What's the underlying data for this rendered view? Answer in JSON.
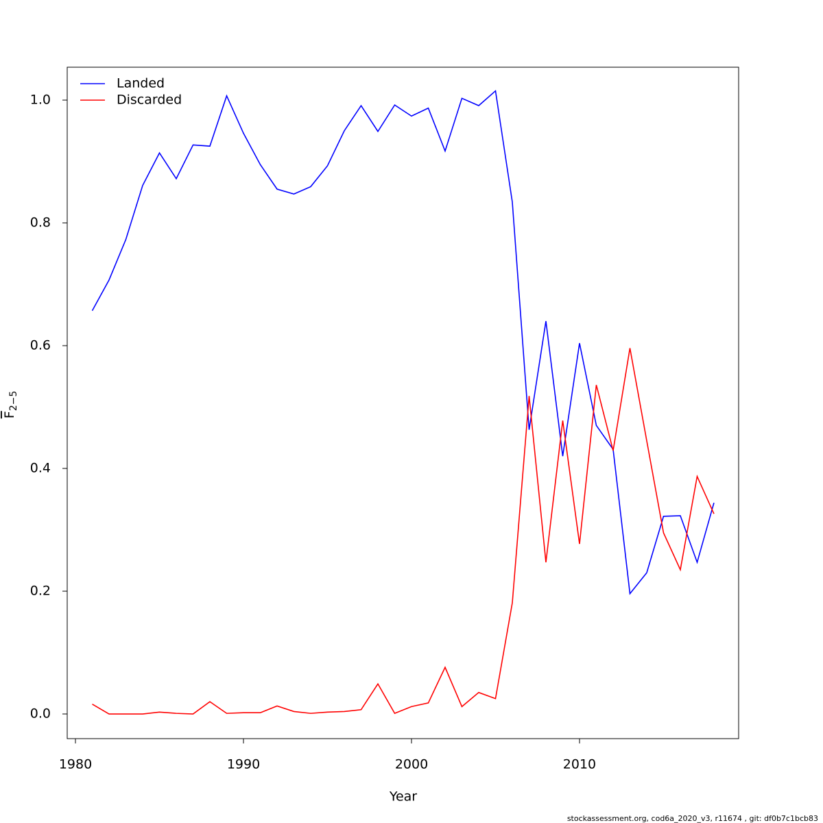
{
  "chart_data": {
    "type": "line",
    "xlabel": "Year",
    "ylabel": {
      "main": "F",
      "subscript": "2−5"
    },
    "footnote": "stockassessment.org, cod6a_2020_v3, r11674 , git: df0b7c1bcb83",
    "x": [
      1981,
      1982,
      1983,
      1984,
      1985,
      1986,
      1987,
      1988,
      1989,
      1990,
      1991,
      1992,
      1993,
      1994,
      1995,
      1996,
      1997,
      1998,
      1999,
      2000,
      2001,
      2002,
      2003,
      2004,
      2005,
      2006,
      2007,
      2008,
      2009,
      2010,
      2011,
      2012,
      2013,
      2014,
      2015,
      2016,
      2017,
      2018
    ],
    "series": [
      {
        "name": "Landed",
        "color": "#0000ff",
        "values": [
          0.657,
          0.707,
          0.773,
          0.861,
          0.914,
          0.872,
          0.927,
          0.925,
          1.007,
          0.946,
          0.895,
          0.855,
          0.847,
          0.859,
          0.893,
          0.95,
          0.991,
          0.949,
          0.992,
          0.974,
          0.987,
          0.917,
          1.003,
          0.991,
          1.015,
          0.834,
          0.463,
          0.64,
          0.42,
          0.604,
          0.47,
          0.431,
          0.196,
          0.23,
          0.322,
          0.323,
          0.247,
          0.344
        ]
      },
      {
        "name": "Discarded",
        "color": "#ff0000",
        "values": [
          0.016,
          0.0,
          0.0,
          0.0,
          0.003,
          0.001,
          0.0,
          0.02,
          0.001,
          0.002,
          0.002,
          0.013,
          0.004,
          0.001,
          0.003,
          0.004,
          0.007,
          0.049,
          0.001,
          0.012,
          0.018,
          0.076,
          0.012,
          0.035,
          0.025,
          0.181,
          0.518,
          0.247,
          0.478,
          0.277,
          0.536,
          0.429,
          0.596,
          0.445,
          0.295,
          0.235,
          0.387,
          0.326
        ]
      }
    ],
    "xlim": [
      1979.51,
      2019.47
    ],
    "ylim": [
      -0.0402,
      1.0536
    ],
    "xticks": [
      1980,
      1990,
      2000,
      2010
    ],
    "yticks": [
      {
        "value": 0,
        "label": "0.0"
      },
      0.2,
      0.4,
      0.6,
      0.8,
      {
        "value": 1,
        "label": "1.0"
      }
    ],
    "legend": "top-left"
  }
}
